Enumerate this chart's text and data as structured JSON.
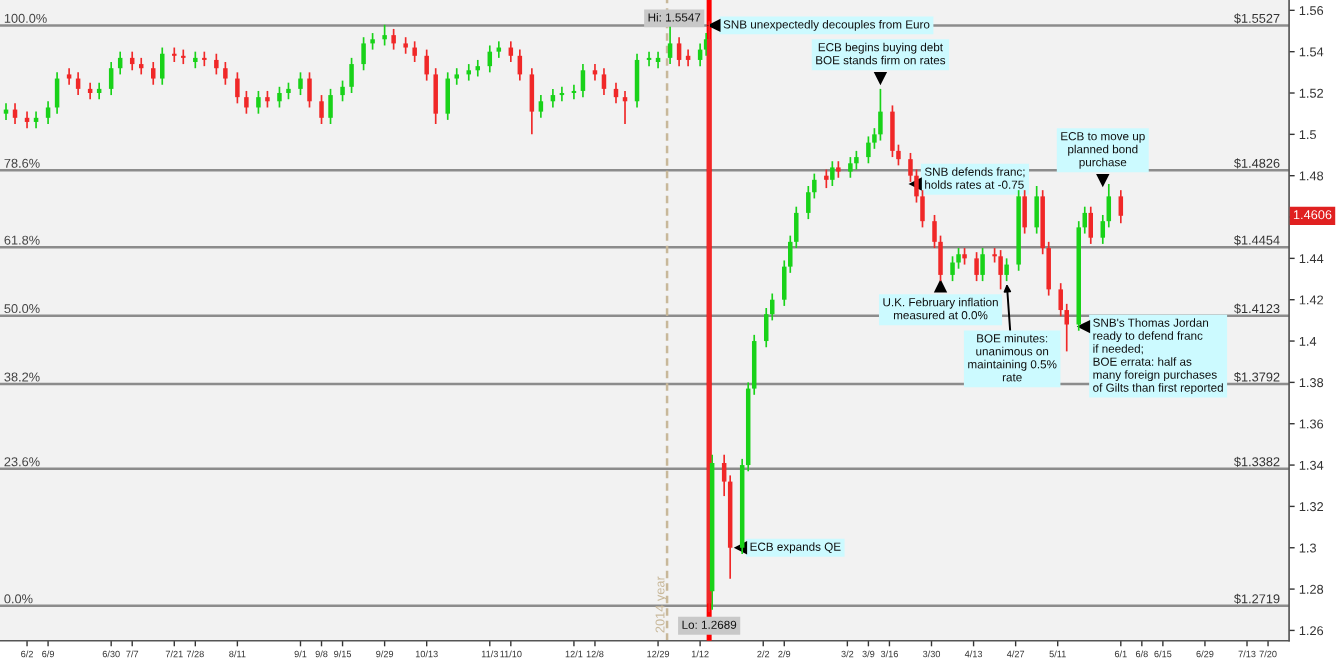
{
  "chart_data": {
    "type": "candlestick",
    "x": [
      "2014-05-26",
      "2014-05-29",
      "2014-06-02",
      "2014-06-05",
      "2014-06-09",
      "2014-06-12",
      "2014-06-16",
      "2014-06-19",
      "2014-06-23",
      "2014-06-26",
      "2014-06-30",
      "2014-07-03",
      "2014-07-07",
      "2014-07-10",
      "2014-07-14",
      "2014-07-17",
      "2014-07-21",
      "2014-07-24",
      "2014-07-28",
      "2014-07-31",
      "2014-08-04",
      "2014-08-07",
      "2014-08-11",
      "2014-08-14",
      "2014-08-18",
      "2014-08-21",
      "2014-08-25",
      "2014-08-28",
      "2014-09-01",
      "2014-09-04",
      "2014-09-08",
      "2014-09-11",
      "2014-09-15",
      "2014-09-18",
      "2014-09-22",
      "2014-09-25",
      "2014-09-29",
      "2014-10-02",
      "2014-10-06",
      "2014-10-09",
      "2014-10-13",
      "2014-10-16",
      "2014-10-20",
      "2014-10-23",
      "2014-10-27",
      "2014-10-30",
      "2014-11-03",
      "2014-11-06",
      "2014-11-10",
      "2014-11-13",
      "2014-11-17",
      "2014-11-20",
      "2014-11-24",
      "2014-11-27",
      "2014-12-01",
      "2014-12-04",
      "2014-12-08",
      "2014-12-11",
      "2014-12-15",
      "2014-12-18",
      "2014-12-22",
      "2014-12-26",
      "2014-12-29",
      "2015-01-02",
      "2015-01-05",
      "2015-01-08",
      "2015-01-12",
      "2015-01-14",
      "2015-01-15",
      "2015-01-16",
      "2015-01-20",
      "2015-01-22",
      "2015-01-26",
      "2015-01-28",
      "2015-01-30",
      "2015-02-03",
      "2015-02-05",
      "2015-02-09",
      "2015-02-11",
      "2015-02-13",
      "2015-02-17",
      "2015-02-19",
      "2015-02-23",
      "2015-02-25",
      "2015-02-27",
      "2015-03-03",
      "2015-03-05",
      "2015-03-09",
      "2015-03-11",
      "2015-03-13",
      "2015-03-17",
      "2015-03-19",
      "2015-03-23",
      "2015-03-25",
      "2015-03-27",
      "2015-03-31",
      "2015-04-02",
      "2015-04-06",
      "2015-04-08",
      "2015-04-10",
      "2015-04-14",
      "2015-04-16",
      "2015-04-20",
      "2015-04-22",
      "2015-04-24",
      "2015-04-28",
      "2015-04-30",
      "2015-05-04",
      "2015-05-06",
      "2015-05-08",
      "2015-05-12",
      "2015-05-14",
      "2015-05-18",
      "2015-05-20",
      "2015-05-22",
      "2015-05-26",
      "2015-05-28",
      "2015-06-01"
    ],
    "ohlc": [
      [
        1.51,
        1.515,
        1.507,
        1.512
      ],
      [
        1.512,
        1.515,
        1.505,
        1.508
      ],
      [
        1.508,
        1.511,
        1.503,
        1.506
      ],
      [
        1.506,
        1.511,
        1.503,
        1.508
      ],
      [
        1.508,
        1.516,
        1.505,
        1.513
      ],
      [
        1.513,
        1.53,
        1.51,
        1.527
      ],
      [
        1.529,
        1.532,
        1.524,
        1.527
      ],
      [
        1.527,
        1.53,
        1.519,
        1.522
      ],
      [
        1.522,
        1.525,
        1.517,
        1.52
      ],
      [
        1.52,
        1.525,
        1.517,
        1.522
      ],
      [
        1.522,
        1.535,
        1.519,
        1.532
      ],
      [
        1.532,
        1.54,
        1.529,
        1.537
      ],
      [
        1.537,
        1.54,
        1.531,
        1.534
      ],
      [
        1.534,
        1.537,
        1.529,
        1.532
      ],
      [
        1.532,
        1.535,
        1.524,
        1.527
      ],
      [
        1.527,
        1.542,
        1.524,
        1.539
      ],
      [
        1.539,
        1.542,
        1.535,
        1.538
      ],
      [
        1.538,
        1.541,
        1.534,
        1.537
      ],
      [
        1.535,
        1.54,
        1.532,
        1.537
      ],
      [
        1.537,
        1.54,
        1.533,
        1.536
      ],
      [
        1.536,
        1.539,
        1.529,
        1.532
      ],
      [
        1.532,
        1.535,
        1.524,
        1.527
      ],
      [
        1.527,
        1.53,
        1.515,
        1.518
      ],
      [
        1.518,
        1.521,
        1.51,
        1.513
      ],
      [
        1.513,
        1.521,
        1.51,
        1.518
      ],
      [
        1.518,
        1.521,
        1.513,
        1.516
      ],
      [
        1.516,
        1.523,
        1.513,
        1.52
      ],
      [
        1.52,
        1.525,
        1.517,
        1.522
      ],
      [
        1.522,
        1.53,
        1.519,
        1.527
      ],
      [
        1.527,
        1.53,
        1.513,
        1.516
      ],
      [
        1.516,
        1.519,
        1.505,
        1.508
      ],
      [
        1.508,
        1.522,
        1.505,
        1.519
      ],
      [
        1.519,
        1.526,
        1.516,
        1.523
      ],
      [
        1.523,
        1.537,
        1.52,
        1.534
      ],
      [
        1.534,
        1.547,
        1.531,
        1.544
      ],
      [
        1.544,
        1.549,
        1.541,
        1.546
      ],
      [
        1.546,
        1.553,
        1.543,
        1.548
      ],
      [
        1.548,
        1.551,
        1.541,
        1.544
      ],
      [
        1.544,
        1.547,
        1.539,
        1.542
      ],
      [
        1.542,
        1.545,
        1.535,
        1.538
      ],
      [
        1.538,
        1.541,
        1.526,
        1.529
      ],
      [
        1.529,
        1.532,
        1.505,
        1.51
      ],
      [
        1.51,
        1.53,
        1.507,
        1.527
      ],
      [
        1.527,
        1.532,
        1.524,
        1.529
      ],
      [
        1.529,
        1.534,
        1.526,
        1.531
      ],
      [
        1.531,
        1.536,
        1.528,
        1.533
      ],
      [
        1.533,
        1.543,
        1.53,
        1.54
      ],
      [
        1.54,
        1.545,
        1.537,
        1.542
      ],
      [
        1.542,
        1.545,
        1.535,
        1.538
      ],
      [
        1.538,
        1.541,
        1.526,
        1.529
      ],
      [
        1.529,
        1.532,
        1.5,
        1.511
      ],
      [
        1.511,
        1.519,
        1.508,
        1.516
      ],
      [
        1.516,
        1.522,
        1.513,
        1.519
      ],
      [
        1.519,
        1.523,
        1.516,
        1.52
      ],
      [
        1.52,
        1.524,
        1.517,
        1.521
      ],
      [
        1.521,
        1.534,
        1.518,
        1.531
      ],
      [
        1.531,
        1.534,
        1.526,
        1.529
      ],
      [
        1.529,
        1.532,
        1.519,
        1.522
      ],
      [
        1.522,
        1.525,
        1.515,
        1.518
      ],
      [
        1.518,
        1.521,
        1.505,
        1.516
      ],
      [
        1.516,
        1.539,
        1.513,
        1.536
      ],
      [
        1.536,
        1.54,
        1.533,
        1.537
      ],
      [
        1.535,
        1.54,
        1.532,
        1.537
      ],
      [
        1.537,
        1.552,
        1.534,
        1.544
      ],
      [
        1.544,
        1.547,
        1.533,
        1.536
      ],
      [
        1.538,
        1.541,
        1.533,
        1.536
      ],
      [
        1.536,
        1.544,
        1.533,
        1.541
      ],
      [
        1.541,
        1.549,
        1.538,
        1.546
      ],
      [
        1.546,
        1.5547,
        1.2689,
        1.273
      ],
      [
        1.279,
        1.345,
        1.27,
        1.341
      ],
      [
        1.341,
        1.345,
        1.325,
        1.332
      ],
      [
        1.332,
        1.335,
        1.285,
        1.3
      ],
      [
        1.3,
        1.343,
        1.297,
        1.34
      ],
      [
        1.34,
        1.38,
        1.337,
        1.377
      ],
      [
        1.377,
        1.403,
        1.374,
        1.4
      ],
      [
        1.4,
        1.416,
        1.397,
        1.413
      ],
      [
        1.413,
        1.423,
        1.41,
        1.42
      ],
      [
        1.42,
        1.439,
        1.417,
        1.436
      ],
      [
        1.436,
        1.451,
        1.433,
        1.448
      ],
      [
        1.448,
        1.465,
        1.445,
        1.462
      ],
      [
        1.462,
        1.475,
        1.459,
        1.472
      ],
      [
        1.472,
        1.481,
        1.469,
        1.478
      ],
      [
        1.48,
        1.483,
        1.474,
        1.478
      ],
      [
        1.478,
        1.487,
        1.475,
        1.484
      ],
      [
        1.484,
        1.487,
        1.479,
        1.482
      ],
      [
        1.482,
        1.489,
        1.479,
        1.486
      ],
      [
        1.486,
        1.492,
        1.483,
        1.489
      ],
      [
        1.489,
        1.499,
        1.486,
        1.496
      ],
      [
        1.496,
        1.503,
        1.493,
        1.5
      ],
      [
        1.5,
        1.522,
        1.497,
        1.511
      ],
      [
        1.511,
        1.514,
        1.489,
        1.492
      ],
      [
        1.492,
        1.495,
        1.485,
        1.488
      ],
      [
        1.488,
        1.491,
        1.477,
        1.48
      ],
      [
        1.48,
        1.483,
        1.467,
        1.47
      ],
      [
        1.47,
        1.473,
        1.455,
        1.458
      ],
      [
        1.458,
        1.461,
        1.445,
        1.448
      ],
      [
        1.448,
        1.451,
        1.429,
        1.432
      ],
      [
        1.432,
        1.441,
        1.429,
        1.438
      ],
      [
        1.438,
        1.445,
        1.435,
        1.442
      ],
      [
        1.442,
        1.445,
        1.437,
        1.44
      ],
      [
        1.44,
        1.443,
        1.429,
        1.432
      ],
      [
        1.432,
        1.445,
        1.429,
        1.442
      ],
      [
        1.442,
        1.445,
        1.438,
        1.441
      ],
      [
        1.441,
        1.444,
        1.425,
        1.432
      ],
      [
        1.432,
        1.44,
        1.429,
        1.437
      ],
      [
        1.437,
        1.473,
        1.434,
        1.47
      ],
      [
        1.47,
        1.473,
        1.452,
        1.455
      ],
      [
        1.455,
        1.475,
        1.452,
        1.47
      ],
      [
        1.47,
        1.473,
        1.442,
        1.445
      ],
      [
        1.445,
        1.448,
        1.422,
        1.425
      ],
      [
        1.425,
        1.428,
        1.412,
        1.415
      ],
      [
        1.415,
        1.418,
        1.395,
        1.408
      ],
      [
        1.408,
        1.458,
        1.405,
        1.455
      ],
      [
        1.455,
        1.465,
        1.452,
        1.462
      ],
      [
        1.462,
        1.465,
        1.447,
        1.45
      ],
      [
        1.45,
        1.461,
        1.447,
        1.458
      ],
      [
        1.458,
        1.476,
        1.455,
        1.47
      ],
      [
        1.47,
        1.473,
        1.457,
        1.4606
      ]
    ],
    "xlim": [
      "2014-05-24",
      "2015-07-27"
    ],
    "ylim": [
      1.255,
      1.565
    ],
    "yticks": [
      1.26,
      1.28,
      1.3,
      1.32,
      1.34,
      1.36,
      1.38,
      1.4,
      1.42,
      1.44,
      {
        "value": 1.46,
        "label": null
      },
      1.48,
      1.5,
      1.52,
      1.54,
      1.56
    ],
    "xticks": [
      {
        "value": "2014-06-02",
        "label": "6/2"
      },
      {
        "value": "2014-06-09",
        "label": "6/9"
      },
      {
        "value": "2014-06-30",
        "label": "6/30"
      },
      {
        "value": "2014-07-07",
        "label": "7/7"
      },
      {
        "value": "2014-07-21",
        "label": "7/21"
      },
      {
        "value": "2014-07-28",
        "label": "7/28"
      },
      {
        "value": "2014-08-11",
        "label": "8/11"
      },
      {
        "value": "2014-09-01",
        "label": "9/1"
      },
      {
        "value": "2014-09-08",
        "label": "9/8"
      },
      {
        "value": "2014-09-15",
        "label": "9/15"
      },
      {
        "value": "2014-09-29",
        "label": "9/29"
      },
      {
        "value": "2014-10-13",
        "label": "10/13"
      },
      {
        "value": "2014-11-03",
        "label": "11/3"
      },
      {
        "value": "2014-11-10",
        "label": "11/10"
      },
      {
        "value": "2014-12-01",
        "label": "12/1"
      },
      {
        "value": "2014-12-08",
        "label": "12/8"
      },
      {
        "value": "2014-12-29",
        "label": "12/29"
      },
      {
        "value": "2015-01-12",
        "label": "1/12"
      },
      {
        "value": "2015-02-02",
        "label": "2/2"
      },
      {
        "value": "2015-02-09",
        "label": "2/9"
      },
      {
        "value": "2015-03-02",
        "label": "3/2"
      },
      {
        "value": "2015-03-09",
        "label": "3/9"
      },
      {
        "value": "2015-03-16",
        "label": "3/16"
      },
      {
        "value": "2015-03-30",
        "label": "3/30"
      },
      {
        "value": "2015-04-13",
        "label": "4/13"
      },
      {
        "value": "2015-04-27",
        "label": "4/27"
      },
      {
        "value": "2015-05-11",
        "label": "5/11"
      },
      {
        "value": "2015-06-01",
        "label": "6/1"
      },
      {
        "value": "2015-06-08",
        "label": "6/8"
      },
      {
        "value": "2015-06-15",
        "label": "6/15"
      },
      {
        "value": "2015-06-29",
        "label": "6/29"
      },
      {
        "value": "2015-07-13",
        "label": "7/13"
      },
      {
        "value": "2015-07-20",
        "label": "7/20"
      }
    ],
    "ref_lines": [
      {
        "axis": "y",
        "value": 1.5527,
        "label": "$1.5527",
        "color": "#8c8c8c"
      },
      {
        "axis": "y",
        "value": 1.4826,
        "label": "$1.4826",
        "color": "#8c8c8c"
      },
      {
        "axis": "y",
        "value": 1.4454,
        "label": "$1.4454",
        "color": "#8c8c8c"
      },
      {
        "axis": "y",
        "value": 1.4123,
        "label": "$1.4123",
        "color": "#8c8c8c"
      },
      {
        "axis": "y",
        "value": 1.3792,
        "label": "$1.3792",
        "color": "#8c8c8c"
      },
      {
        "axis": "y",
        "value": 1.3382,
        "label": "$1.3382",
        "color": "#8c8c8c"
      },
      {
        "axis": "y",
        "value": 1.2719,
        "label": "$1.2719",
        "color": "#8c8c8c"
      },
      {
        "axis": "x",
        "value": "2015-01-01",
        "label": "2014 year",
        "color": "#c8b89a",
        "line_style": "dashed"
      },
      {
        "axis": "x",
        "value": "2015-01-15",
        "color": "#ff0000"
      }
    ],
    "annotations": [
      {
        "text": "1.4606",
        "y": 1.4606
      },
      {
        "text": "100.0%",
        "y": 1.5527
      },
      {
        "text": "78.6%",
        "y": 1.4826
      },
      {
        "text": "61.8%",
        "y": 1.4454
      },
      {
        "text": "50.0%",
        "y": 1.4123
      },
      {
        "text": "38.2%",
        "y": 1.3792
      },
      {
        "text": "23.6%",
        "y": 1.3382
      },
      {
        "text": "0.0%",
        "y": 1.2719
      },
      {
        "text": "Hi: 1.5547",
        "x": "2015-01-15",
        "y": 1.5547
      },
      {
        "text": "Lo: 1.2689",
        "x": "2015-01-15",
        "y": 1.2689
      },
      {
        "text": "SNB unexpectedly decouples from Euro",
        "x": "2015-01-15",
        "y": 1.5527
      },
      {
        "text": "ECB begins buying debt\nBOE stands firm on rates",
        "x": "2015-03-13",
        "y": 1.522
      },
      {
        "text": "SNB defends franc;\nholds rates at -0.75",
        "x": "2015-03-23",
        "y": 1.476
      },
      {
        "text": "U.K. February inflation\nmeasured at 0.0%",
        "x": "2015-04-02",
        "y": 1.429
      },
      {
        "text": "BOE minutes:\nunanimous on\nmaintaining 0.5%\nrate",
        "x": "2015-04-24",
        "y": 1.429
      },
      {
        "text": "SNB's Thomas Jordan\nready to defend franc\nif needed;\nBOE errata: half as\nmany foreign purchases\nof Gilts than first reported",
        "x": "2015-05-18",
        "y": 1.407
      },
      {
        "text": "ECB to move up\nplanned bond\npurchase",
        "x": "2015-05-26",
        "y": 1.474
      },
      {
        "text": "ECB expands QE",
        "x": "2015-01-22",
        "y": 1.3
      }
    ]
  }
}
